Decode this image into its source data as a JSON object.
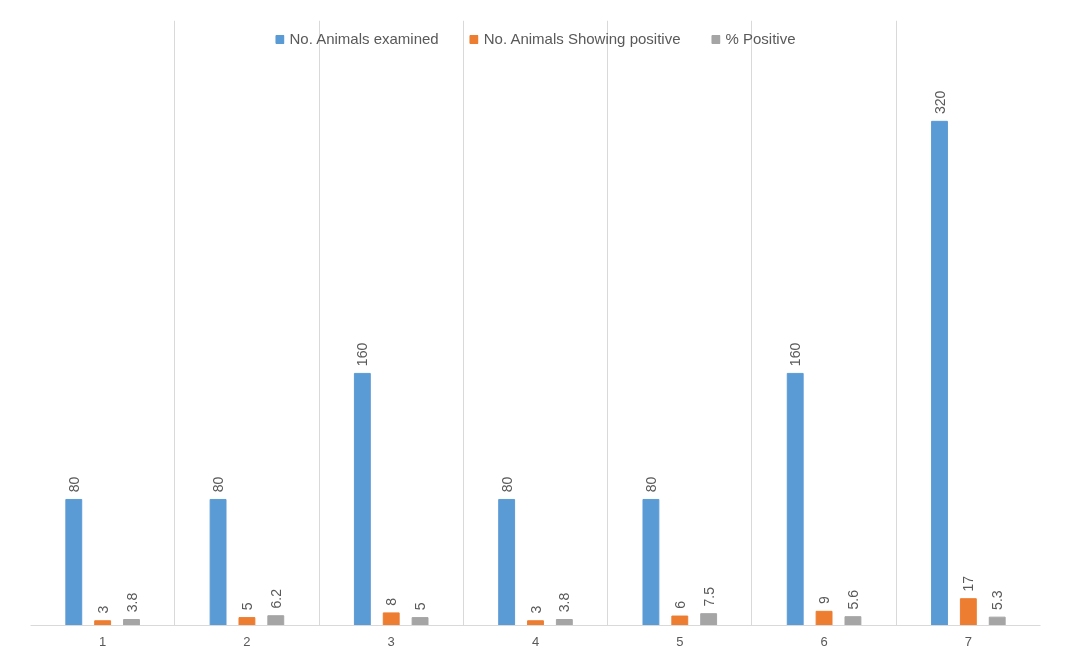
{
  "chart_data": {
    "type": "bar",
    "categories": [
      "1",
      "2",
      "3",
      "4",
      "5",
      "6",
      "7"
    ],
    "series": [
      {
        "name": "No. Animals examined",
        "color": "#5b9bd5",
        "values": [
          80,
          80,
          160,
          80,
          80,
          160,
          320
        ]
      },
      {
        "name": "No. Animals Showing positive",
        "color": "#ed7d31",
        "values": [
          3,
          5,
          8,
          3,
          6,
          9,
          17
        ]
      },
      {
        "name": "% Positive",
        "color": "#a5a5a5",
        "values": [
          3.8,
          6.2,
          5,
          3.8,
          7.5,
          5.6,
          5.3
        ]
      }
    ],
    "data_labels": true,
    "legend": "top",
    "grid": "x"
  }
}
